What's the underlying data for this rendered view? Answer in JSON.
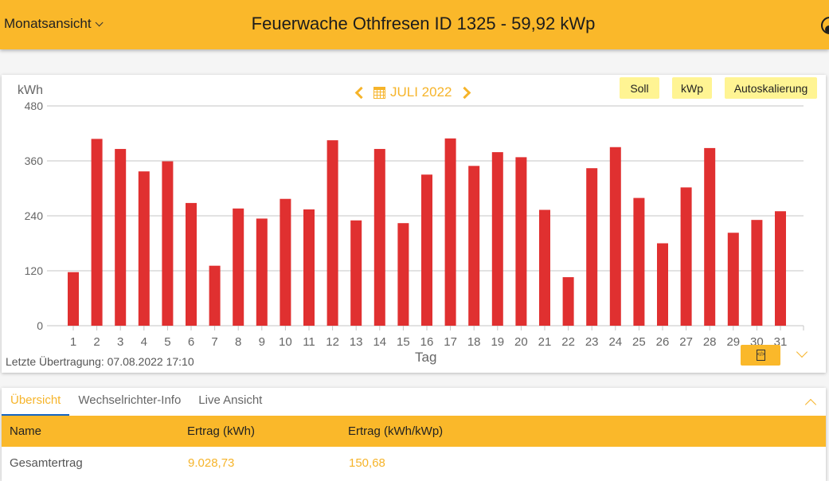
{
  "header": {
    "view_select": "Monatsansicht",
    "title": "Feuerwache Othfresen ID 1325 - 59,92 kWp",
    "user_icon": "user-account-icon"
  },
  "chart_card": {
    "y_unit": "kWh",
    "period_label": "JULI 2022",
    "prev_icon": "chevron-left-icon",
    "next_icon": "chevron-right-icon",
    "calendar_icon": "calendar-icon",
    "buttons": {
      "soll": "Soll",
      "kwp": "kWp",
      "autoscale": "Autoskalierung"
    },
    "last_transmission": "Letzte Übertragung: 07.08.2022 17:10",
    "x_label": "Tag",
    "export_icon": "file-code-icon",
    "expand_icon": "chevron-down-icon"
  },
  "chart_data": {
    "type": "bar",
    "title": "JULI 2022",
    "xlabel": "Tag",
    "ylabel": "kWh",
    "ylim": [
      0,
      480
    ],
    "yticks": [
      0,
      120,
      240,
      360,
      480
    ],
    "grid": true,
    "legend": "none",
    "bar_color": "#e03030",
    "categories": [
      "1",
      "2",
      "3",
      "4",
      "5",
      "6",
      "7",
      "8",
      "9",
      "10",
      "11",
      "12",
      "13",
      "14",
      "15",
      "16",
      "17",
      "18",
      "19",
      "20",
      "21",
      "22",
      "23",
      "24",
      "25",
      "26",
      "27",
      "28",
      "29",
      "30",
      "31"
    ],
    "values": [
      117,
      408,
      386,
      337,
      359,
      268,
      131,
      256,
      234,
      277,
      254,
      405,
      230,
      386,
      224,
      330,
      409,
      349,
      379,
      368,
      253,
      106,
      344,
      390,
      279,
      180,
      302,
      388,
      203,
      231,
      250
    ]
  },
  "table_card": {
    "tabs": [
      "Übersicht",
      "Wechselrichter-Info",
      "Live Ansicht"
    ],
    "active_tab": "Übersicht",
    "collapse_icon": "chevron-up-icon",
    "columns": [
      "Name",
      "Ertrag (kWh)",
      "Ertrag (kWh/kWp)"
    ],
    "rows": [
      {
        "name": "Gesamtertrag",
        "ertrag_kwh": "9.028,73",
        "ertrag_kwh_kwp": "150,68"
      }
    ]
  }
}
